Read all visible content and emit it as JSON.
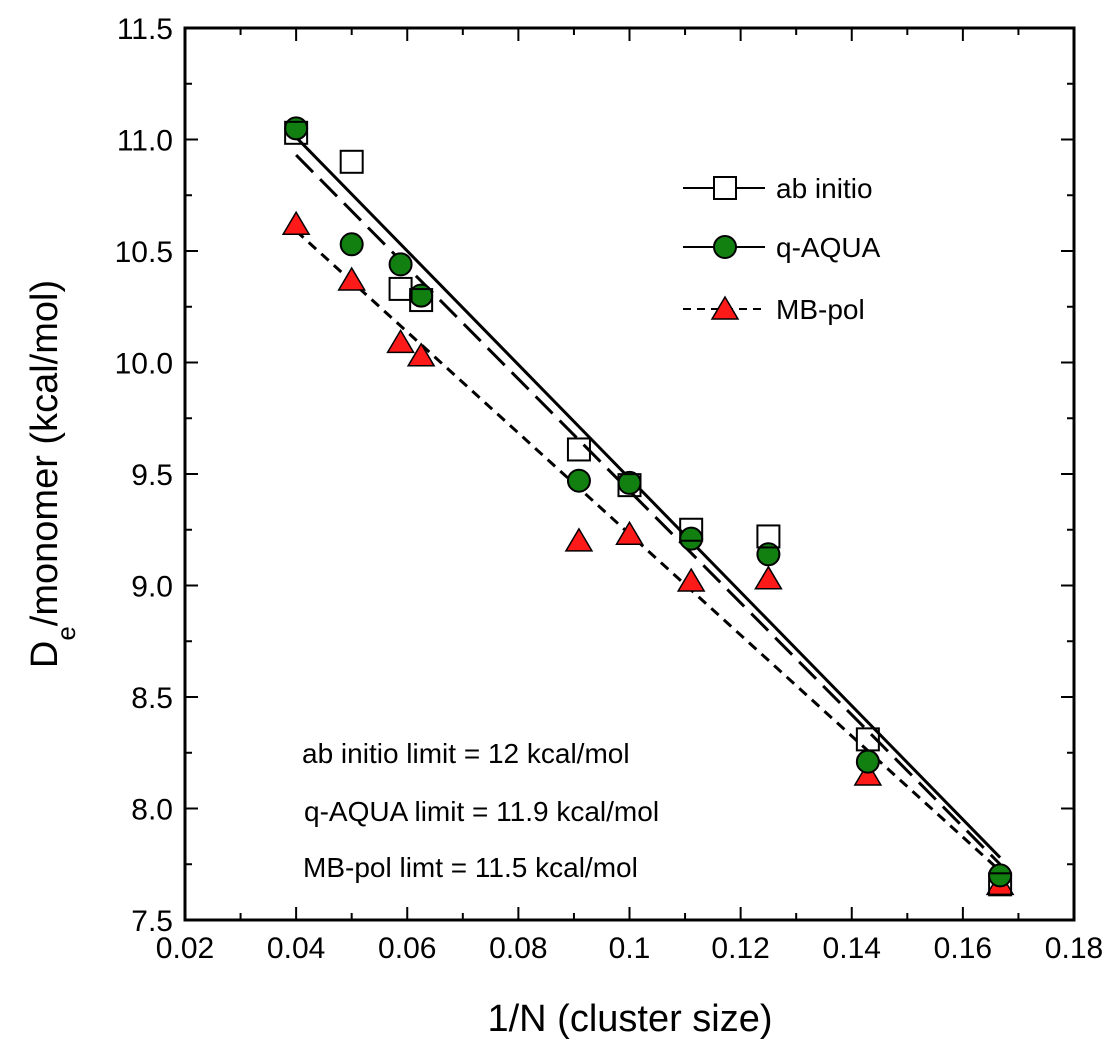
{
  "chart_data": {
    "type": "scatter",
    "title": "",
    "xlabel": "1/N (cluster size)",
    "ylabel_main": "D",
    "ylabel_sub": "e",
    "ylabel_rest": "/monomer (kcal/mol)",
    "xlim": [
      0.02,
      0.18
    ],
    "ylim": [
      7.5,
      11.5
    ],
    "xticks": [
      0.02,
      0.04,
      0.06,
      0.08,
      0.1,
      0.12,
      0.14,
      0.16,
      0.18
    ],
    "xtick_labels": [
      "0.02",
      "0.04",
      "0.06",
      "0.08",
      "0.1",
      "0.12",
      "0.14",
      "0.16",
      "0.18"
    ],
    "yticks": [
      7.5,
      8.0,
      8.5,
      9.0,
      9.5,
      10.0,
      10.5,
      11.0,
      11.5
    ],
    "ytick_labels": [
      "7.5",
      "8.0",
      "8.5",
      "9.0",
      "9.5",
      "10.0",
      "10.5",
      "11.0",
      "11.5"
    ],
    "grid": false,
    "legend_position": "top-right",
    "series": [
      {
        "name": "ab initio",
        "marker": "square",
        "line_style": "solid",
        "color": "#ffffff",
        "stroke": "#000000",
        "x": [
          0.04,
          0.05,
          0.0588,
          0.0625,
          0.0909,
          0.1,
          0.1111,
          0.125,
          0.1429,
          0.1667
        ],
        "y": [
          11.03,
          10.9,
          10.33,
          10.28,
          9.61,
          9.45,
          9.25,
          9.22,
          8.31,
          7.66
        ],
        "fit": {
          "x": [
            0.04,
            0.1667
          ],
          "y": [
            11.01,
            7.78
          ]
        }
      },
      {
        "name": "q-AQUA",
        "marker": "circle",
        "line_style": "longdash",
        "color": "#118011",
        "stroke": "#000000",
        "x": [
          0.04,
          0.05,
          0.0588,
          0.0625,
          0.0909,
          0.1,
          0.1111,
          0.125,
          0.1429,
          0.1667
        ],
        "y": [
          11.05,
          10.53,
          10.44,
          10.3,
          9.47,
          9.46,
          9.21,
          9.14,
          8.21,
          7.7
        ],
        "fit": {
          "x": [
            0.04,
            0.1667
          ],
          "y": [
            10.93,
            7.75
          ]
        }
      },
      {
        "name": "MB-pol",
        "marker": "triangle",
        "line_style": "shortdash",
        "color": "#ff1a1a",
        "stroke": "#000000",
        "x": [
          0.04,
          0.05,
          0.0588,
          0.0625,
          0.0909,
          0.1,
          0.1111,
          0.125,
          0.1429,
          0.1667
        ],
        "y": [
          10.62,
          10.37,
          10.09,
          10.03,
          9.2,
          9.23,
          9.02,
          9.03,
          8.15,
          7.66
        ],
        "fit": {
          "x": [
            0.04,
            0.1667
          ],
          "y": [
            10.59,
            7.72
          ]
        }
      }
    ],
    "annotations": [
      "ab initio limit = 12 kcal/mol",
      "q-AQUA limit = 11.9 kcal/mol",
      "MB-pol limt = 11.5 kcal/mol"
    ]
  }
}
